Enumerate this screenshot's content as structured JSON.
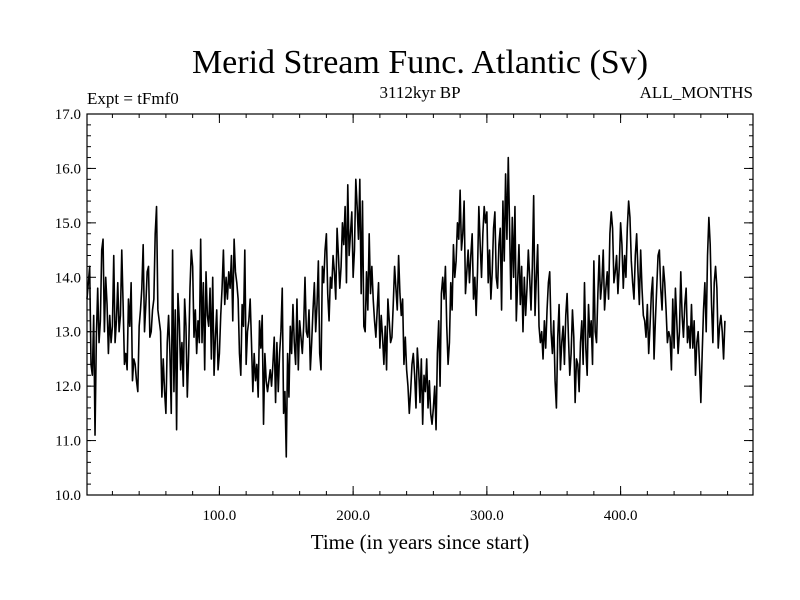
{
  "chart_data": {
    "type": "line",
    "title": "Merid Stream Func. Atlantic (Sv)",
    "subtitle_left": "Expt = tFmf0",
    "subtitle_center": "3112kyr BP",
    "subtitle_right": "ALL_MONTHS",
    "xlabel": "Time (in years since start)",
    "ylabel": "",
    "xlim": [
      1,
      499
    ],
    "ylim": [
      10.0,
      17.0
    ],
    "x_ticks": [
      100,
      200,
      300,
      400
    ],
    "x_tick_labels": [
      "100.0",
      "200.0",
      "300.0",
      "400.0"
    ],
    "y_ticks": [
      10,
      11,
      12,
      13,
      14,
      15,
      16,
      17
    ],
    "y_tick_labels": [
      "10.0",
      "11.0",
      "12.0",
      "13.0",
      "14.0",
      "15.0",
      "16.0",
      "17.0"
    ],
    "grid": false,
    "series": [
      {
        "name": "Merid Stream Func. Atlantic",
        "x_start": 1,
        "x_step": 1,
        "color": "#000000",
        "values": [
          13.6,
          13.9,
          14.2,
          12.4,
          12.2,
          13.3,
          11.1,
          12.9,
          13.8,
          12.8,
          13.2,
          14.5,
          14.7,
          13.0,
          14.0,
          13.5,
          12.6,
          13.3,
          12.8,
          13.1,
          14.4,
          12.8,
          13.2,
          13.9,
          13.0,
          13.3,
          14.5,
          13.5,
          12.4,
          12.6,
          12.3,
          13.6,
          13.1,
          13.9,
          12.1,
          12.5,
          12.4,
          12.1,
          11.9,
          13.1,
          13.4,
          13.8,
          14.6,
          13.0,
          13.5,
          14.1,
          14.2,
          12.9,
          13.0,
          13.4,
          13.6,
          14.8,
          15.3,
          13.4,
          13.2,
          13.0,
          11.8,
          12.5,
          11.9,
          11.5,
          12.8,
          13.3,
          12.6,
          11.5,
          14.5,
          11.9,
          13.4,
          11.2,
          13.7,
          13.2,
          12.3,
          12.8,
          12.0,
          13.6,
          13.1,
          11.8,
          12.6,
          13.8,
          14.5,
          14.2,
          12.9,
          13.4,
          12.6,
          13.2,
          12.8,
          14.7,
          12.8,
          13.9,
          12.3,
          14.1,
          13.3,
          13.1,
          13.8,
          12.5,
          14.0,
          12.2,
          12.9,
          13.4,
          12.3,
          12.6,
          13.3,
          13.8,
          14.5,
          13.5,
          14.0,
          13.6,
          14.1,
          13.8,
          14.4,
          13.2,
          14.7,
          14.1,
          13.9,
          13.6,
          12.6,
          12.2,
          13.5,
          13.1,
          14.5,
          12.4,
          13.0,
          13.2,
          13.6,
          12.8,
          11.9,
          12.6,
          12.1,
          12.4,
          11.8,
          13.2,
          12.7,
          13.3,
          11.3,
          12.6,
          12.1,
          11.9,
          12.1,
          12.3,
          12.0,
          12.4,
          12.9,
          11.7,
          12.8,
          11.9,
          12.6,
          13.0,
          13.8,
          11.5,
          11.9,
          10.7,
          12.6,
          11.8,
          13.1,
          12.6,
          13.5,
          12.8,
          12.4,
          13.6,
          12.3,
          13.2,
          12.9,
          12.6,
          13.1,
          14.0,
          13.0,
          12.9,
          13.4,
          12.3,
          12.8,
          13.4,
          13.9,
          13.0,
          13.5,
          14.3,
          12.6,
          12.3,
          14.2,
          13.9,
          14.5,
          14.8,
          13.7,
          13.2,
          14.0,
          13.8,
          14.4,
          14.1,
          13.6,
          14.9,
          14.4,
          13.8,
          14.2,
          15.0,
          14.6,
          15.3,
          13.9,
          15.7,
          14.4,
          14.8,
          15.2,
          14.0,
          14.5,
          15.8,
          15.3,
          14.7,
          15.8,
          13.7,
          15.4,
          13.1,
          13.0,
          14.1,
          13.4,
          14.8,
          13.7,
          14.2,
          13.6,
          13.2,
          12.9,
          13.4,
          13.9,
          12.7,
          13.3,
          12.9,
          12.4,
          13.1,
          12.3,
          13.6,
          13.2,
          12.8,
          12.9,
          13.5,
          14.2,
          13.8,
          13.4,
          14.4,
          13.7,
          13.3,
          13.6,
          12.4,
          12.9,
          12.3,
          12.0,
          11.5,
          11.9,
          12.4,
          12.6,
          12.2,
          11.6,
          12.7,
          12.3,
          11.7,
          12.5,
          11.3,
          12.2,
          11.9,
          12.5,
          11.6,
          12.1,
          11.5,
          11.3,
          11.6,
          12.0,
          11.2,
          12.6,
          13.2,
          12.0,
          13.7,
          14.0,
          13.6,
          14.2,
          13.1,
          12.4,
          12.8,
          13.9,
          13.4,
          14.6,
          14.0,
          14.3,
          15.0,
          14.7,
          15.6,
          14.5,
          14.8,
          15.4,
          13.7,
          14.1,
          14.5,
          13.9,
          14.4,
          14.8,
          13.6,
          14.0,
          13.3,
          14.1,
          15.3,
          14.6,
          14.0,
          14.8,
          15.3,
          15.0,
          15.2,
          13.9,
          14.5,
          13.6,
          14.1,
          14.9,
          15.2,
          14.0,
          13.8,
          14.6,
          14.9,
          13.4,
          15.4,
          14.3,
          15.9,
          14.7,
          16.2,
          14.9,
          13.6,
          15.1,
          14.0,
          15.3,
          13.2,
          13.9,
          14.6,
          13.5,
          14.2,
          13.0,
          14.0,
          13.3,
          13.8,
          14.5,
          14.0,
          13.4,
          14.2,
          15.5,
          13.3,
          14.0,
          14.6,
          13.1,
          12.8,
          13.0,
          12.5,
          13.2,
          12.7,
          13.4,
          13.9,
          14.1,
          13.0,
          12.6,
          13.2,
          12.1,
          11.6,
          12.9,
          13.5,
          12.3,
          12.8,
          13.1,
          12.4,
          13.3,
          13.7,
          12.9,
          12.2,
          12.6,
          13.4,
          12.9,
          11.7,
          12.5,
          12.4,
          11.9,
          12.8,
          13.2,
          12.4,
          13.9,
          12.7,
          12.2,
          13.5,
          12.9,
          13.2,
          12.4,
          14.3,
          13.0,
          12.8,
          13.7,
          14.4,
          13.6,
          13.9,
          14.5,
          13.4,
          13.8,
          14.1,
          13.6,
          14.8,
          15.2,
          14.9,
          13.9,
          14.1,
          14.4,
          13.7,
          14.2,
          15.0,
          14.6,
          13.8,
          14.4,
          14.0,
          14.9,
          15.4,
          15.1,
          14.3,
          13.9,
          13.6,
          14.4,
          14.8,
          14.1,
          13.5,
          14.5,
          13.8,
          13.3,
          13.2,
          12.9,
          13.5,
          12.6,
          13.1,
          13.7,
          14.0,
          12.5,
          13.2,
          13.8,
          14.4,
          14.5,
          13.8,
          13.4,
          14.2,
          13.9,
          13.4,
          12.8,
          13.0,
          12.9,
          12.3,
          13.6,
          12.7,
          13.8,
          13.2,
          12.6,
          13.0,
          14.1,
          13.3,
          12.9,
          13.5,
          13.8,
          12.8,
          13.1,
          12.7,
          13.5,
          12.7,
          13.2,
          12.2,
          12.8,
          13.0,
          12.4,
          11.7,
          12.6,
          13.4,
          13.9,
          13.0,
          14.4,
          15.1,
          14.6,
          13.5,
          12.8,
          13.9,
          14.2,
          13.8,
          12.7,
          13.1,
          13.3,
          13.0,
          12.5,
          13.2
        ]
      }
    ]
  }
}
